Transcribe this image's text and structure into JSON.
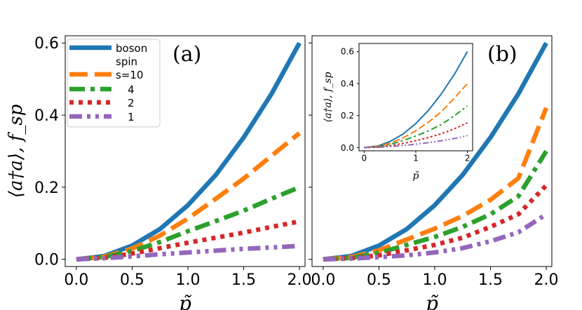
{
  "chart_data": [
    {
      "type": "line",
      "panel_label": "(a)",
      "xlabel": "p̃",
      "ylabel": "⟨a†a⟩,  f_sp",
      "xlim": [
        -0.1,
        2.05
      ],
      "ylim": [
        -0.02,
        0.62
      ],
      "xticks": [
        0.0,
        0.5,
        1.0,
        1.5,
        2.0
      ],
      "xtick_labels": [
        "0.0",
        "0.5",
        "1.0",
        "1.5",
        "2.0"
      ],
      "yticks": [
        0.0,
        0.2,
        0.4,
        0.6
      ],
      "ytick_labels": [
        "0.0",
        "0.2",
        "0.4",
        "0.6"
      ],
      "x": [
        0.0,
        0.25,
        0.5,
        0.75,
        1.0,
        1.25,
        1.5,
        1.75,
        2.0
      ],
      "series": [
        {
          "name": "boson",
          "color": "#1f77b4",
          "style": "solid",
          "values": [
            0.0,
            0.009,
            0.038,
            0.084,
            0.15,
            0.234,
            0.338,
            0.459,
            0.6
          ]
        },
        {
          "name": "s=10",
          "color": "#ff7f0e",
          "style": "dashed",
          "values": [
            0.0,
            0.007,
            0.03,
            0.066,
            0.113,
            0.168,
            0.224,
            0.287,
            0.35
          ]
        },
        {
          "name": "4",
          "color": "#2ca02c",
          "style": "dashdot",
          "values": [
            0.0,
            0.006,
            0.023,
            0.048,
            0.078,
            0.106,
            0.135,
            0.168,
            0.2
          ]
        },
        {
          "name": "2",
          "color": "#d62728",
          "style": "dotted",
          "values": [
            0.0,
            0.004,
            0.016,
            0.031,
            0.046,
            0.06,
            0.074,
            0.09,
            0.105
          ]
        },
        {
          "name": "1",
          "color": "#9467bd",
          "style": "dashdotdot",
          "values": [
            0.0,
            0.003,
            0.008,
            0.014,
            0.019,
            0.024,
            0.029,
            0.033,
            0.037
          ]
        }
      ]
    },
    {
      "type": "line",
      "panel_label": "(b)",
      "xlabel": "p̃",
      "xlim": [
        -0.1,
        2.05
      ],
      "ylim": [
        -0.02,
        0.62
      ],
      "xticks": [
        0.0,
        0.5,
        1.0,
        1.5,
        2.0
      ],
      "xtick_labels": [
        "0.0",
        "0.5",
        "1.0",
        "1.5",
        "2.0"
      ],
      "x": [
        0.0,
        0.25,
        0.5,
        0.75,
        1.0,
        1.25,
        1.5,
        1.75,
        2.0
      ],
      "series": [
        {
          "name": "boson",
          "color": "#1f77b4",
          "style": "solid",
          "values": [
            0.0,
            0.009,
            0.038,
            0.084,
            0.15,
            0.234,
            0.338,
            0.459,
            0.6
          ]
        },
        {
          "name": "s=10",
          "color": "#ff7f0e",
          "style": "dashed",
          "values": [
            0.0,
            0.006,
            0.025,
            0.055,
            0.085,
            0.12,
            0.165,
            0.225,
            0.42
          ]
        },
        {
          "name": "4",
          "color": "#2ca02c",
          "style": "dashdot",
          "values": [
            0.0,
            0.004,
            0.018,
            0.04,
            0.062,
            0.09,
            0.125,
            0.175,
            0.3
          ]
        },
        {
          "name": "2",
          "color": "#d62728",
          "style": "dotted",
          "values": [
            0.0,
            0.003,
            0.011,
            0.025,
            0.04,
            0.06,
            0.09,
            0.125,
            0.205
          ]
        },
        {
          "name": "1",
          "color": "#9467bd",
          "style": "dashdotdot",
          "values": [
            0.0,
            0.002,
            0.006,
            0.011,
            0.019,
            0.031,
            0.05,
            0.075,
            0.125
          ]
        }
      ],
      "inset": {
        "type": "line",
        "xlabel": "p̃",
        "ylabel": "⟨a†a⟩,  f_sp",
        "xlim": [
          -0.1,
          2.1
        ],
        "ylim": [
          -0.02,
          0.65
        ],
        "xticks": [
          0,
          1,
          2
        ],
        "xtick_labels": [
          "0",
          "1",
          "2"
        ],
        "yticks": [
          0.0,
          0.2,
          0.4,
          0.6
        ],
        "ytick_labels": [
          "0.0",
          "0.2",
          "0.4",
          "0.6"
        ],
        "x": [
          0.0,
          0.25,
          0.5,
          0.75,
          1.0,
          1.25,
          1.5,
          1.75,
          2.0
        ],
        "series": [
          {
            "name": "boson",
            "color": "#1f77b4",
            "style": "solid",
            "values": [
              0.0,
              0.009,
              0.038,
              0.084,
              0.15,
              0.234,
              0.338,
              0.459,
              0.6
            ]
          },
          {
            "name": "s=10",
            "color": "#ff7f0e",
            "style": "dashed",
            "values": [
              0.0,
              0.007,
              0.027,
              0.06,
              0.105,
              0.16,
              0.225,
              0.31,
              0.4
            ]
          },
          {
            "name": "4",
            "color": "#2ca02c",
            "style": "dashdot",
            "values": [
              0.0,
              0.005,
              0.02,
              0.043,
              0.072,
              0.105,
              0.145,
              0.2,
              0.26
            ]
          },
          {
            "name": "2",
            "color": "#d62728",
            "style": "dotted",
            "values": [
              0.0,
              0.003,
              0.012,
              0.026,
              0.043,
              0.063,
              0.087,
              0.118,
              0.155
            ]
          },
          {
            "name": "1",
            "color": "#9467bd",
            "style": "dashdotdot",
            "values": [
              0.0,
              0.002,
              0.006,
              0.013,
              0.021,
              0.031,
              0.043,
              0.057,
              0.075
            ]
          }
        ]
      }
    }
  ],
  "legend": {
    "placement": "top-left",
    "entries": [
      {
        "label": "boson",
        "color": "#1f77b4",
        "style": "solid"
      },
      {
        "label": "spin",
        "color": null,
        "style": "none"
      },
      {
        "label": "s=10",
        "color": "#ff7f0e",
        "style": "dashed"
      },
      {
        "label": "4",
        "color": "#2ca02c",
        "style": "dashdot"
      },
      {
        "label": "2",
        "color": "#d62728",
        "style": "dotted"
      },
      {
        "label": "1",
        "color": "#9467bd",
        "style": "dashdotdot"
      }
    ]
  }
}
